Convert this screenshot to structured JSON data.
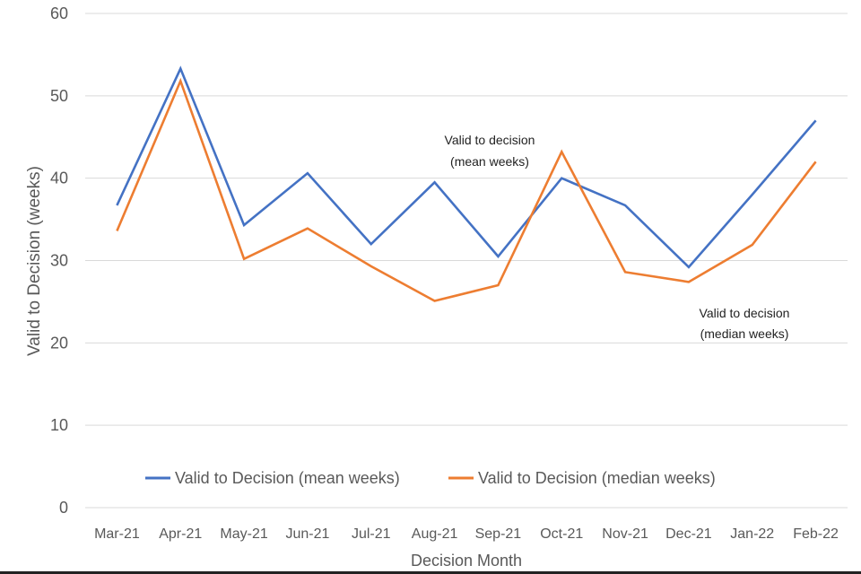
{
  "chart_data": {
    "type": "line",
    "title": "",
    "xlabel": "Decision Month",
    "ylabel": "Valid to Decision (weeks)",
    "ylim": [
      0,
      60
    ],
    "yticks": [
      0,
      10,
      20,
      30,
      40,
      50,
      60
    ],
    "grid": true,
    "legend_position": "bottom-inside",
    "categories": [
      "Mar-21",
      "Apr-21",
      "May-21",
      "Jun-21",
      "Jul-21",
      "Aug-21",
      "Sep-21",
      "Oct-21",
      "Nov-21",
      "Dec-21",
      "Jan-22",
      "Feb-22"
    ],
    "series": [
      {
        "name": "Valid to Decision (mean weeks)",
        "color": "#4472C4",
        "values": [
          36.7,
          53.3,
          34.3,
          40.6,
          32.0,
          39.5,
          30.5,
          40.0,
          36.7,
          29.2,
          38.0,
          47.0
        ]
      },
      {
        "name": "Valid to Decision (median weeks)",
        "color": "#ED7D31",
        "values": [
          33.6,
          51.8,
          30.2,
          33.9,
          29.3,
          25.1,
          27.0,
          43.2,
          28.6,
          27.4,
          31.9,
          42.0
        ]
      }
    ],
    "annotations": [
      {
        "lines": [
          "Valid to decision",
          "(mean weeks)"
        ]
      },
      {
        "lines": [
          "Valid to decision",
          "(median weeks)"
        ]
      }
    ]
  }
}
